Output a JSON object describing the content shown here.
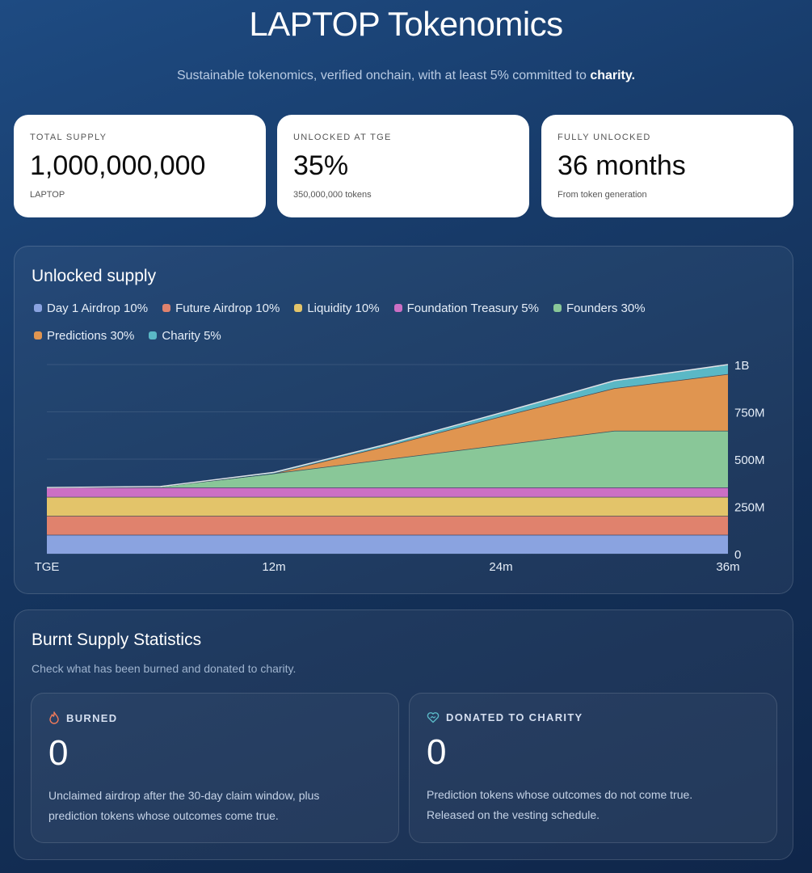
{
  "header": {
    "title": "LAPTOP Tokenomics",
    "subtitle": "Sustainable tokenomics, verified onchain, with at least 5% committed to",
    "subtitle_emphasis": "charity."
  },
  "stats": [
    {
      "label": "TOTAL SUPPLY",
      "value": "1,000,000,000",
      "sub": "LAPTOP"
    },
    {
      "label": "UNLOCKED AT TGE",
      "value": "35%",
      "sub": "350,000,000 tokens"
    },
    {
      "label": "FULLY UNLOCKED",
      "value": "36 months",
      "sub": "From token generation"
    }
  ],
  "chart_panel": {
    "title": "Unlocked supply"
  },
  "chart_data": {
    "type": "area",
    "stacked": true,
    "x": [
      0,
      6,
      12,
      18,
      24,
      30,
      36
    ],
    "x_ticks": [
      0,
      12,
      24,
      36
    ],
    "x_tick_labels": [
      "TGE",
      "12m",
      "24m",
      "36m"
    ],
    "xlim": [
      0,
      36
    ],
    "ylim": [
      0,
      1000000000
    ],
    "y_ticks": [
      0,
      250000000,
      500000000,
      750000000,
      1000000000
    ],
    "y_tick_labels": [
      "0",
      "250M",
      "500M",
      "750M",
      "1B"
    ],
    "y_axis_position": "right",
    "grid": true,
    "legend_position": "top-left",
    "series": [
      {
        "name": "Day 1 Airdrop 10%",
        "color": "#8aa3e0",
        "values": [
          100000000,
          100000000,
          100000000,
          100000000,
          100000000,
          100000000,
          100000000
        ]
      },
      {
        "name": "Future Airdrop 10%",
        "color": "#e0826d",
        "values": [
          100000000,
          100000000,
          100000000,
          100000000,
          100000000,
          100000000,
          100000000
        ]
      },
      {
        "name": "Liquidity 10%",
        "color": "#e3c46a",
        "values": [
          100000000,
          100000000,
          100000000,
          100000000,
          100000000,
          100000000,
          100000000
        ]
      },
      {
        "name": "Foundation Treasury 5%",
        "color": "#cc6fc4",
        "values": [
          50000000,
          50000000,
          50000000,
          50000000,
          50000000,
          50000000,
          50000000
        ]
      },
      {
        "name": "Founders 30%",
        "color": "#89c798",
        "values": [
          0,
          5000000,
          75000000,
          150000000,
          225000000,
          300000000,
          300000000
        ]
      },
      {
        "name": "Predictions 30%",
        "color": "#e09550",
        "values": [
          0,
          0,
          0,
          70000000,
          150000000,
          225000000,
          300000000
        ]
      },
      {
        "name": "Charity 5%",
        "color": "#5ab8c6",
        "values": [
          0,
          0,
          5000000,
          10000000,
          20000000,
          40000000,
          50000000
        ]
      }
    ]
  },
  "burn_panel": {
    "title": "Burnt Supply Statistics",
    "description": "Check what has been burned and donated to charity.",
    "cards": [
      {
        "icon": "flame-icon",
        "label": "BURNED",
        "value": "0",
        "text_line1": "Unclaimed airdrop after the 30-day claim window, plus",
        "text_line2": "prediction tokens whose outcomes come true.",
        "icon_color": "#f07a5a"
      },
      {
        "icon": "heart-icon",
        "label": "DONATED TO CHARITY",
        "value": "0",
        "text_line1": "Prediction tokens whose outcomes do not come true.",
        "text_line2": "Released on the vesting schedule.",
        "icon_color": "#5ab8c6"
      }
    ]
  }
}
